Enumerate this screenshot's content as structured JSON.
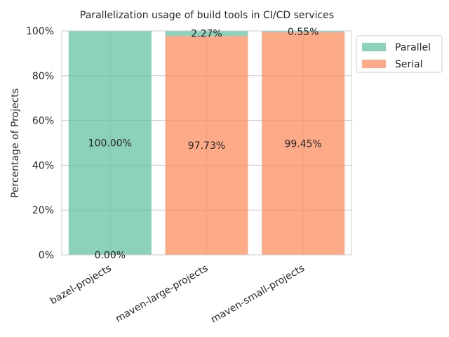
{
  "chart_data": {
    "type": "bar",
    "stacked": true,
    "title": "Parallelization usage of build tools in CI/CD services",
    "xlabel": "",
    "ylabel": "Percentage of Projects",
    "categories": [
      "bazel-projects",
      "maven-large-projects",
      "maven-small-projects"
    ],
    "series": [
      {
        "name": "Serial",
        "values": [
          0.0,
          97.73,
          99.45
        ],
        "labels": [
          "0.00%",
          "97.73%",
          "99.45%"
        ],
        "color": "#fc8d62"
      },
      {
        "name": "Parallel",
        "values": [
          100.0,
          2.27,
          0.55
        ],
        "labels": [
          "100.00%",
          "2.27%",
          "0.55%"
        ],
        "color": "#66c2a5"
      }
    ],
    "ylim": [
      0,
      100
    ],
    "yticks": [
      0,
      20,
      40,
      60,
      80,
      100
    ],
    "ytick_labels": [
      "0%",
      "20%",
      "40%",
      "60%",
      "80%",
      "100%"
    ],
    "grid": true,
    "legend": {
      "position": "outside-top-right",
      "entries": [
        "Parallel",
        "Serial"
      ]
    }
  }
}
